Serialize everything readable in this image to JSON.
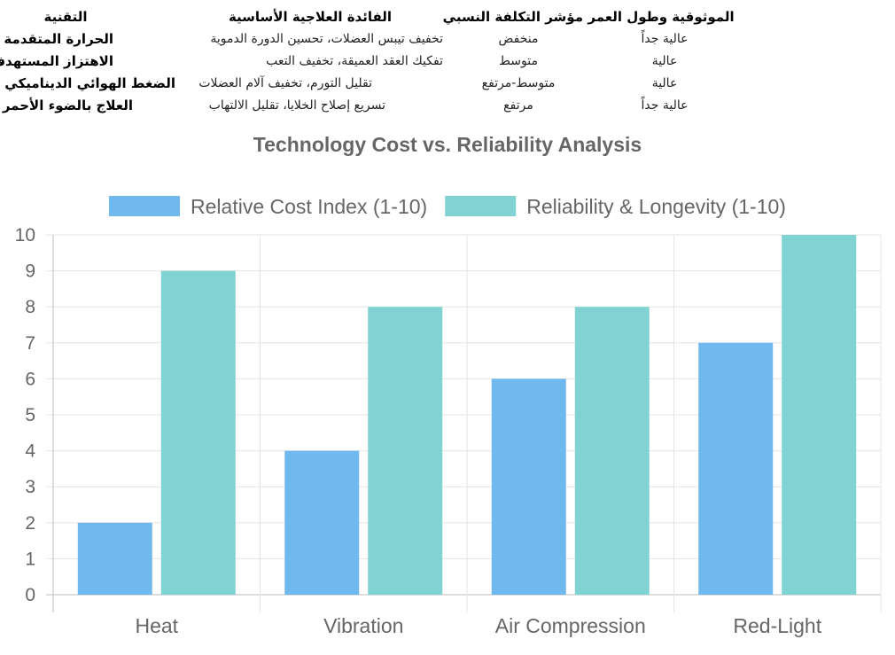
{
  "table": {
    "headers": {
      "technology": "التقنية",
      "benefit": "الفائدة العلاجية الأساسية",
      "cost": "مؤشر التكلفة النسبي",
      "reliability": "الموثوقية وطول العمر"
    },
    "rows": [
      {
        "technology": "الحرارة المتقدمة",
        "benefit": "تخفيف تيبس العضلات، تحسين الدورة الدموية",
        "cost": "منخفض",
        "reliability": "عالية جداً"
      },
      {
        "technology": "الاهتزاز المستهدف",
        "benefit": "تفكيك العقد العميقة، تخفيف التعب",
        "cost": "متوسط",
        "reliability": "عالية"
      },
      {
        "technology": "الضغط الهوائي الديناميكي",
        "benefit": "تقليل التورم، تخفيف آلام العضلات",
        "cost": "متوسط-مرتفع",
        "reliability": "عالية"
      },
      {
        "technology": "العلاج بالضوء الأحمر",
        "benefit": "تسريع إصلاح الخلايا، تقليل الالتهاب",
        "cost": "مرتفع",
        "reliability": "عالية جداً"
      }
    ]
  },
  "chart_data": {
    "type": "bar",
    "title": "Technology Cost vs. Reliability Analysis",
    "categories": [
      "Heat",
      "Vibration",
      "Air Compression",
      "Red-Light"
    ],
    "series": [
      {
        "name": "Relative Cost Index (1-10)",
        "values": [
          2,
          4,
          6,
          7
        ],
        "color": "#36a2eb",
        "fill": "#70b9ee"
      },
      {
        "name": "Reliability & Longevity (1-10)",
        "values": [
          9,
          8,
          8,
          10
        ],
        "color": "#4bc0c0",
        "fill": "#81d3d3"
      }
    ],
    "ylim": [
      0,
      10
    ],
    "yticks": [
      "0",
      "1",
      "2",
      "3",
      "4",
      "5",
      "6",
      "7",
      "8",
      "9",
      "10"
    ],
    "grid": true,
    "legend": "top"
  }
}
